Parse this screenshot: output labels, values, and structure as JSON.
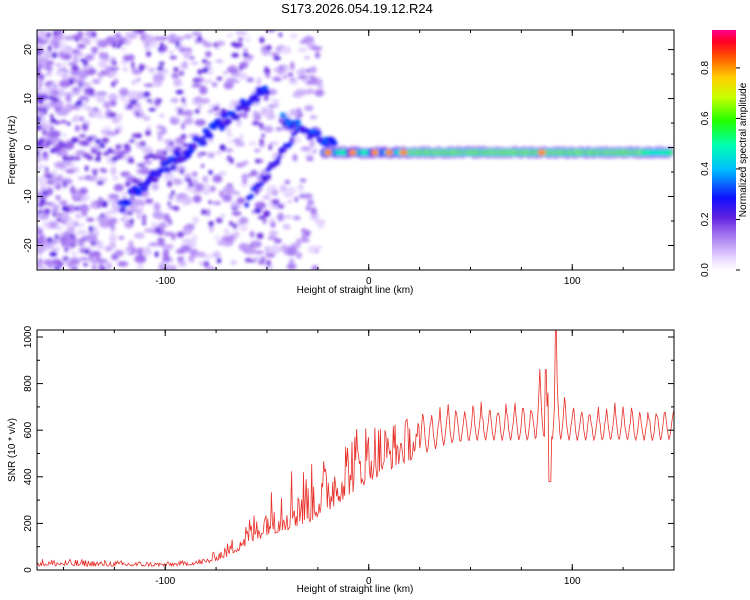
{
  "chart_data": [
    {
      "type": "heatmap",
      "title": "S173.2026.054.19.12.R24",
      "xlabel": "Height of straight line (km)",
      "ylabel": "Frequency (Hz)",
      "xlim": [
        -163,
        150
      ],
      "ylim": [
        -25,
        24
      ],
      "xticks": [
        -100,
        0,
        100
      ],
      "yticks": [
        -20,
        -10,
        0,
        10,
        20
      ],
      "colorbar": {
        "label": "Normalized spectral amplitude",
        "range": [
          0,
          0.95
        ],
        "ticks": [
          0.0,
          0.2,
          0.4,
          0.6,
          0.8
        ]
      },
      "features": [
        {
          "name": "constant-line",
          "x_start": -20,
          "x_end": 148,
          "frequency_hz": -1
        },
        {
          "name": "rising-arc",
          "x_start": -120,
          "x_end": -50,
          "frequency_start_hz": -12,
          "frequency_end_hz": 12
        },
        {
          "name": "lower-arc",
          "x_start": -60,
          "x_end": -35,
          "frequency_start_hz": -11,
          "frequency_end_hz": 4
        }
      ]
    },
    {
      "type": "line",
      "title": "",
      "xlabel": "Height of straight line (km)",
      "ylabel": "SNR (10 * v/v)",
      "xlim": [
        -163,
        150
      ],
      "ylim": [
        0,
        1030
      ],
      "xticks": [
        -100,
        0,
        100
      ],
      "yticks": [
        0,
        200,
        400,
        600,
        800,
        1000
      ],
      "series": [
        {
          "name": "SNR",
          "color": "#e8302a",
          "x": [
            -163,
            -140,
            -120,
            -100,
            -90,
            -80,
            -70,
            -60,
            -50,
            -40,
            -30,
            -20,
            -10,
            0,
            10,
            20,
            30,
            40,
            50,
            60,
            70,
            80,
            85,
            90,
            92,
            95,
            100,
            110,
            120,
            130,
            140,
            150
          ],
          "baseline": [
            18,
            16,
            16,
            16,
            20,
            25,
            55,
            100,
            150,
            170,
            200,
            250,
            320,
            380,
            430,
            470,
            510,
            540,
            550,
            555,
            555,
            555,
            560,
            555,
            560,
            555,
            555,
            555,
            555,
            555,
            555,
            560
          ],
          "envelope": [
            50,
            45,
            40,
            35,
            40,
            55,
            110,
            220,
            320,
            480,
            450,
            500,
            620,
            660,
            640,
            660,
            700,
            720,
            720,
            720,
            730,
            720,
            880,
            760,
            1030,
            760,
            720,
            710,
            710,
            700,
            700,
            710
          ]
        }
      ]
    }
  ]
}
